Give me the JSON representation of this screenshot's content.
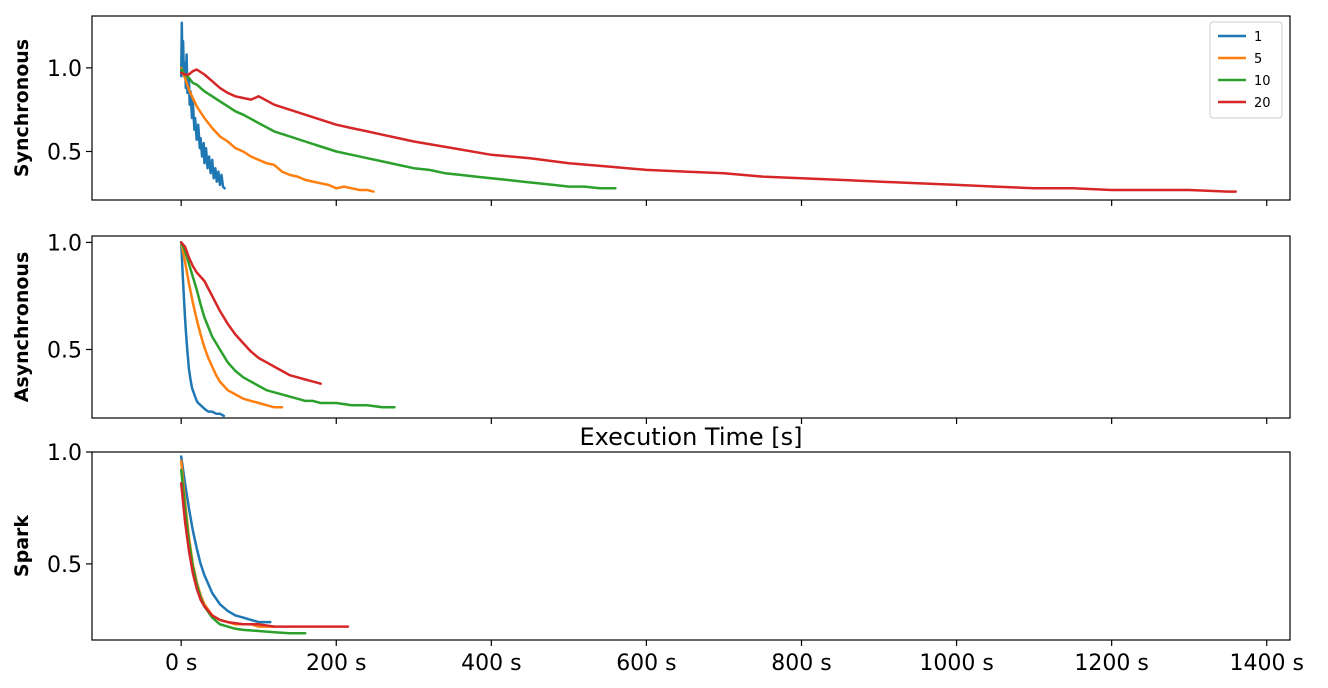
{
  "chart_data": [
    {
      "type": "line",
      "ylabel": "Synchronous",
      "xlim": [
        -115,
        1430
      ],
      "ylim": [
        0.21,
        1.31
      ],
      "yticks": [
        0.5,
        1.0
      ],
      "ytick_labels": [
        "0.5",
        "1.0"
      ],
      "xticks": [
        0,
        200,
        400,
        600,
        800,
        1000,
        1200,
        1400
      ],
      "xtick_labels": [],
      "legend": {
        "placement": "top-right",
        "entries": [
          "1",
          "5",
          "10",
          "20"
        ]
      },
      "series": [
        {
          "name": "1",
          "color": "#1f77b4",
          "x": [
            0,
            0.8,
            1.5,
            2.5,
            3.5,
            5,
            6,
            7,
            8,
            10,
            11,
            12,
            14,
            15,
            17,
            18,
            20,
            22,
            24,
            25,
            27,
            29,
            30,
            32,
            34,
            36,
            38,
            40,
            42,
            44,
            46,
            48,
            50,
            52,
            54,
            56
          ],
          "y": [
            0.95,
            1.27,
            1.05,
            1.16,
            0.95,
            1.03,
            0.88,
            1.08,
            0.85,
            0.94,
            0.78,
            0.86,
            0.7,
            0.8,
            0.63,
            0.7,
            0.57,
            0.66,
            0.52,
            0.58,
            0.47,
            0.55,
            0.43,
            0.52,
            0.4,
            0.47,
            0.37,
            0.45,
            0.34,
            0.4,
            0.32,
            0.38,
            0.3,
            0.36,
            0.29,
            0.28
          ]
        },
        {
          "name": "5",
          "color": "#ff7f0e",
          "x": [
            0,
            5,
            10,
            15,
            20,
            30,
            40,
            50,
            60,
            70,
            80,
            90,
            100,
            110,
            120,
            130,
            140,
            150,
            160,
            170,
            180,
            190,
            200,
            210,
            220,
            230,
            240,
            248
          ],
          "y": [
            1.0,
            0.94,
            0.87,
            0.82,
            0.77,
            0.7,
            0.64,
            0.59,
            0.56,
            0.52,
            0.5,
            0.47,
            0.45,
            0.43,
            0.42,
            0.38,
            0.36,
            0.35,
            0.33,
            0.32,
            0.31,
            0.3,
            0.28,
            0.29,
            0.28,
            0.27,
            0.27,
            0.26
          ]
        },
        {
          "name": "10",
          "color": "#2ca02c",
          "x": [
            0,
            5,
            10,
            15,
            20,
            30,
            40,
            50,
            60,
            70,
            80,
            100,
            120,
            140,
            160,
            180,
            200,
            220,
            240,
            260,
            280,
            300,
            320,
            340,
            360,
            380,
            400,
            420,
            440,
            460,
            480,
            500,
            520,
            540,
            560
          ],
          "y": [
            0.99,
            0.96,
            0.94,
            0.91,
            0.9,
            0.86,
            0.83,
            0.8,
            0.77,
            0.74,
            0.72,
            0.67,
            0.62,
            0.59,
            0.56,
            0.53,
            0.5,
            0.48,
            0.46,
            0.44,
            0.42,
            0.4,
            0.39,
            0.37,
            0.36,
            0.35,
            0.34,
            0.33,
            0.32,
            0.31,
            0.3,
            0.29,
            0.29,
            0.28,
            0.28
          ]
        },
        {
          "name": "20",
          "color": "#d62728",
          "x": [
            0,
            5,
            10,
            15,
            20,
            30,
            40,
            50,
            60,
            70,
            80,
            90,
            100,
            120,
            140,
            160,
            180,
            200,
            220,
            240,
            260,
            280,
            300,
            350,
            400,
            450,
            500,
            550,
            600,
            650,
            700,
            750,
            800,
            850,
            900,
            950,
            1000,
            1050,
            1100,
            1150,
            1200,
            1250,
            1300,
            1350,
            1360
          ],
          "y": [
            0.97,
            0.96,
            0.96,
            0.98,
            0.99,
            0.96,
            0.92,
            0.88,
            0.85,
            0.83,
            0.82,
            0.81,
            0.83,
            0.78,
            0.75,
            0.72,
            0.69,
            0.66,
            0.64,
            0.62,
            0.6,
            0.58,
            0.56,
            0.52,
            0.48,
            0.46,
            0.43,
            0.41,
            0.39,
            0.38,
            0.37,
            0.35,
            0.34,
            0.33,
            0.32,
            0.31,
            0.3,
            0.29,
            0.28,
            0.28,
            0.27,
            0.27,
            0.27,
            0.26,
            0.26
          ]
        }
      ]
    },
    {
      "type": "line",
      "ylabel": "Asynchronous",
      "title": "Execution Time [s]",
      "xlim": [
        -115,
        1430
      ],
      "ylim": [
        0.18,
        1.03
      ],
      "yticks": [
        0.5,
        1.0
      ],
      "ytick_labels": [
        "0.5",
        "1.0"
      ],
      "xticks": [
        0,
        200,
        400,
        600,
        800,
        1000,
        1200,
        1400
      ],
      "xtick_labels": [],
      "series": [
        {
          "name": "1",
          "color": "#1f77b4",
          "x": [
            0,
            1,
            2,
            3,
            4,
            5,
            6,
            7,
            8,
            9,
            10,
            12,
            14,
            16,
            18,
            20,
            22,
            25,
            28,
            31,
            35,
            40,
            45,
            50,
            55
          ],
          "y": [
            1.0,
            0.93,
            0.85,
            0.78,
            0.71,
            0.65,
            0.59,
            0.54,
            0.49,
            0.45,
            0.41,
            0.36,
            0.32,
            0.3,
            0.28,
            0.26,
            0.25,
            0.24,
            0.23,
            0.22,
            0.21,
            0.21,
            0.2,
            0.2,
            0.19
          ]
        },
        {
          "name": "5",
          "color": "#ff7f0e",
          "x": [
            0,
            5,
            10,
            15,
            20,
            25,
            30,
            35,
            40,
            45,
            50,
            55,
            60,
            65,
            70,
            75,
            80,
            90,
            100,
            110,
            120,
            130
          ],
          "y": [
            1.0,
            0.91,
            0.81,
            0.72,
            0.64,
            0.57,
            0.51,
            0.46,
            0.42,
            0.38,
            0.35,
            0.33,
            0.31,
            0.3,
            0.29,
            0.28,
            0.27,
            0.26,
            0.25,
            0.24,
            0.23,
            0.23
          ]
        },
        {
          "name": "10",
          "color": "#2ca02c",
          "x": [
            0,
            5,
            10,
            15,
            20,
            25,
            30,
            40,
            50,
            60,
            70,
            80,
            90,
            100,
            110,
            120,
            130,
            140,
            150,
            160,
            170,
            180,
            190,
            200,
            220,
            240,
            260,
            275
          ],
          "y": [
            1.0,
            0.96,
            0.9,
            0.84,
            0.78,
            0.71,
            0.65,
            0.56,
            0.5,
            0.44,
            0.4,
            0.37,
            0.35,
            0.33,
            0.31,
            0.3,
            0.29,
            0.28,
            0.27,
            0.26,
            0.26,
            0.25,
            0.25,
            0.25,
            0.24,
            0.24,
            0.23,
            0.23
          ]
        },
        {
          "name": "20",
          "color": "#d62728",
          "x": [
            0,
            5,
            10,
            15,
            20,
            30,
            40,
            50,
            60,
            70,
            80,
            90,
            100,
            110,
            120,
            130,
            140,
            150,
            160,
            170,
            180
          ],
          "y": [
            1.0,
            0.98,
            0.93,
            0.89,
            0.86,
            0.82,
            0.75,
            0.68,
            0.62,
            0.57,
            0.53,
            0.49,
            0.46,
            0.44,
            0.42,
            0.4,
            0.38,
            0.37,
            0.36,
            0.35,
            0.34
          ]
        }
      ]
    },
    {
      "type": "line",
      "ylabel": "Spark",
      "xlim": [
        -115,
        1430
      ],
      "ylim": [
        0.16,
        1.0
      ],
      "yticks": [
        0.5,
        1.0
      ],
      "ytick_labels": [
        "0.5",
        "1.0"
      ],
      "xticks": [
        0,
        200,
        400,
        600,
        800,
        1000,
        1200,
        1400
      ],
      "xtick_labels": [
        "0 s",
        "200 s",
        "400 s",
        "600 s",
        "800 s",
        "1000 s",
        "1200 s",
        "1400 s"
      ],
      "series": [
        {
          "name": "1",
          "color": "#1f77b4",
          "x": [
            0,
            5,
            10,
            15,
            20,
            25,
            30,
            35,
            40,
            50,
            60,
            70,
            80,
            90,
            100,
            110,
            115
          ],
          "y": [
            0.98,
            0.86,
            0.75,
            0.65,
            0.57,
            0.5,
            0.45,
            0.41,
            0.37,
            0.32,
            0.29,
            0.27,
            0.26,
            0.25,
            0.24,
            0.24,
            0.24
          ]
        },
        {
          "name": "5",
          "color": "#ff7f0e",
          "x": [
            0,
            5,
            10,
            15,
            20,
            25,
            30,
            40,
            50,
            60,
            70,
            80,
            90,
            100,
            110,
            120
          ],
          "y": [
            0.96,
            0.78,
            0.62,
            0.5,
            0.42,
            0.36,
            0.32,
            0.27,
            0.25,
            0.24,
            0.23,
            0.23,
            0.23,
            0.22,
            0.22,
            0.22
          ]
        },
        {
          "name": "10",
          "color": "#2ca02c",
          "x": [
            0,
            5,
            10,
            15,
            20,
            25,
            30,
            40,
            50,
            60,
            70,
            80,
            100,
            120,
            140,
            160
          ],
          "y": [
            0.92,
            0.75,
            0.6,
            0.49,
            0.41,
            0.35,
            0.31,
            0.26,
            0.23,
            0.22,
            0.21,
            0.205,
            0.2,
            0.195,
            0.19,
            0.19
          ]
        },
        {
          "name": "20",
          "color": "#d62728",
          "x": [
            0,
            5,
            10,
            15,
            20,
            25,
            30,
            40,
            50,
            60,
            80,
            100,
            120,
            140,
            160,
            180,
            200,
            215
          ],
          "y": [
            0.86,
            0.69,
            0.56,
            0.46,
            0.39,
            0.34,
            0.31,
            0.27,
            0.25,
            0.24,
            0.23,
            0.23,
            0.22,
            0.22,
            0.22,
            0.22,
            0.22,
            0.22
          ]
        }
      ]
    }
  ]
}
